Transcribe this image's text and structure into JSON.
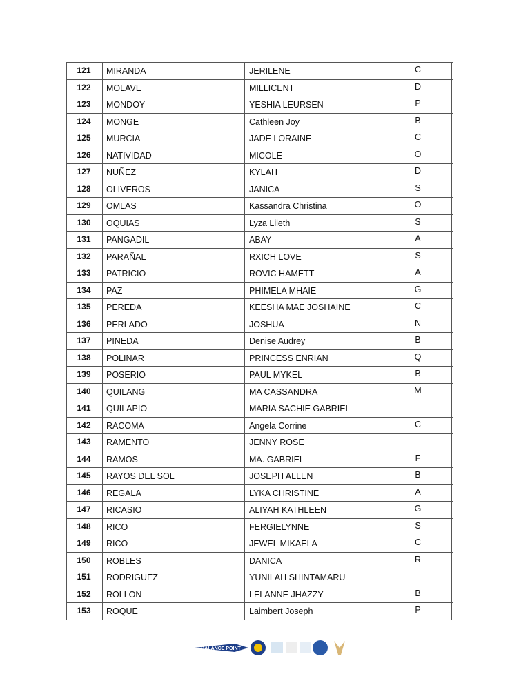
{
  "table": {
    "rows": [
      [
        121,
        "MIRANDA",
        "JERILENE",
        "C"
      ],
      [
        122,
        "MOLAVE",
        "MILLICENT",
        "D"
      ],
      [
        123,
        "MONDOY",
        "YESHIA LEURSEN",
        "P"
      ],
      [
        124,
        "MONGE",
        "Cathleen Joy",
        "B"
      ],
      [
        125,
        "MURCIA",
        "JADE LORAINE",
        "C"
      ],
      [
        126,
        "NATIVIDAD",
        "MICOLE",
        "O"
      ],
      [
        127,
        "NUÑEZ",
        "KYLAH",
        "D"
      ],
      [
        128,
        "OLIVEROS",
        "JANICA",
        "S"
      ],
      [
        129,
        "OMLAS",
        "Kassandra Christina",
        "O"
      ],
      [
        130,
        "OQUIAS",
        "Lyza Lileth",
        "S"
      ],
      [
        131,
        "PANGADIL",
        "ABAY",
        "A"
      ],
      [
        132,
        "PARAÑAL",
        "RXICH LOVE",
        "S"
      ],
      [
        133,
        "PATRICIO",
        "ROVIC HAMETT",
        "A"
      ],
      [
        134,
        "PAZ",
        "PHIMELA MHAIE",
        "G"
      ],
      [
        135,
        "PEREDA",
        "KEESHA MAE JOSHAINE",
        "C"
      ],
      [
        136,
        "PERLADO",
        "JOSHUA",
        "N"
      ],
      [
        137,
        "PINEDA",
        "Denise Audrey",
        "B"
      ],
      [
        138,
        "POLINAR",
        "PRINCESS ENRIAN",
        "Q"
      ],
      [
        139,
        "POSERIO",
        "PAUL MYKEL",
        "B"
      ],
      [
        140,
        "QUILANG",
        "MA CASSANDRA",
        "M"
      ],
      [
        141,
        "QUILAPIO",
        "MARIA SACHIE GABRIEL",
        null
      ],
      [
        142,
        "RACOMA",
        "Angela Corrine",
        "C"
      ],
      [
        143,
        "RAMENTO",
        "JENNY ROSE",
        null
      ],
      [
        144,
        "RAMOS",
        "MA. GABRIEL",
        "F"
      ],
      [
        145,
        "RAYOS DEL SOL",
        "JOSEPH ALLEN",
        "B"
      ],
      [
        146,
        "REGALA",
        "LYKA CHRISTINE",
        "A"
      ],
      [
        147,
        "RICASIO",
        "ALIYAH KATHLEEN",
        "G"
      ],
      [
        148,
        "RICO",
        "FERGIELYNNE",
        "S"
      ],
      [
        149,
        "RICO",
        "JEWEL MIKAELA",
        "C"
      ],
      [
        150,
        "ROBLES",
        "DANICA",
        "R"
      ],
      [
        151,
        "RODRIGUEZ",
        "YUNILAH SHINTAMARU",
        null
      ],
      [
        152,
        "ROLLON",
        "LELANNE JHAZZY",
        "B"
      ],
      [
        153,
        "ROQUE",
        "Laimbert Joseph",
        "P"
      ]
    ]
  },
  "footer": {
    "logo_text": "BALANCE POINT"
  }
}
